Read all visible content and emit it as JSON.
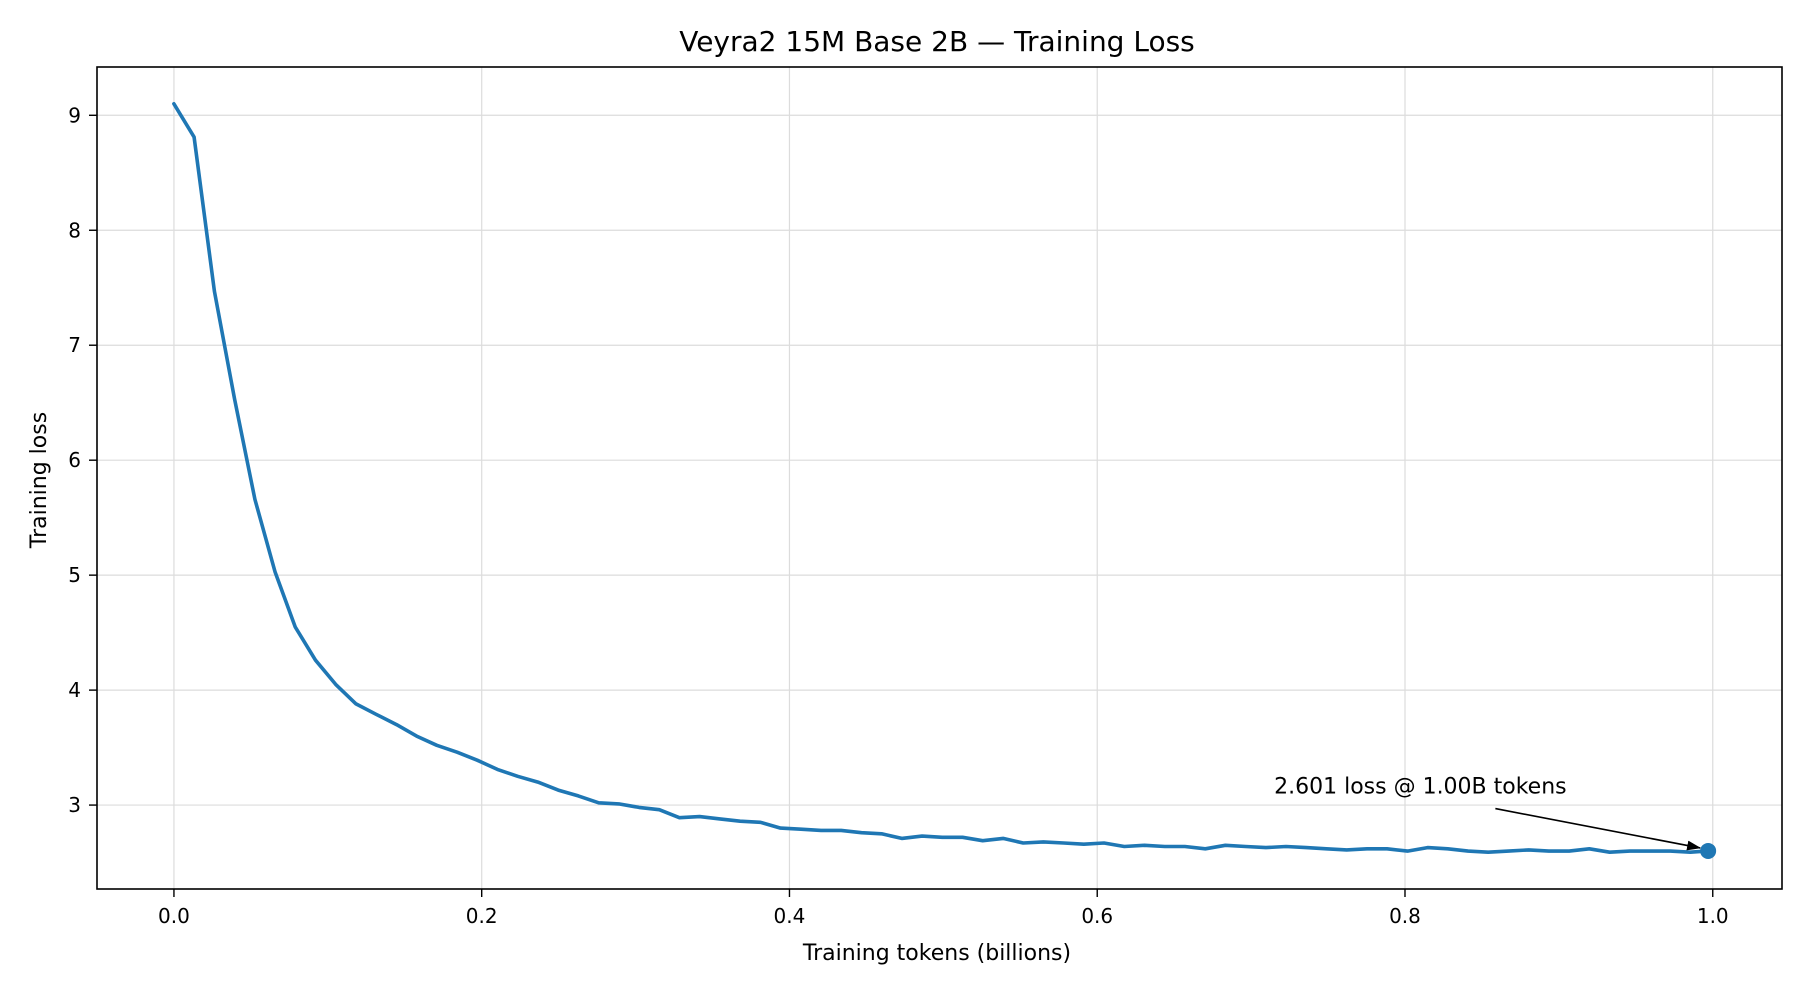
{
  "chart_data": {
    "type": "line",
    "title": "Veyra2 15M Base 2B  — Training Loss",
    "xlabel": "Training tokens (billions)",
    "ylabel": "Training loss",
    "xlim": [
      -0.05,
      1.045
    ],
    "ylim": [
      2.27,
      9.42
    ],
    "xticks": [
      0.0,
      0.2,
      0.4,
      0.6,
      0.8,
      1.0
    ],
    "xtick_labels": [
      "0.0",
      "0.2",
      "0.4",
      "0.6",
      "0.8",
      "1.0"
    ],
    "yticks": [
      3,
      4,
      5,
      6,
      7,
      8,
      9
    ],
    "ytick_labels": [
      "3",
      "4",
      "5",
      "6",
      "7",
      "8",
      "9"
    ],
    "grid": true,
    "line_color": "#1f77b4",
    "series": [
      {
        "x": [
          0.0,
          0.0131,
          0.0263,
          0.0394,
          0.0526,
          0.0657,
          0.0788,
          0.092,
          0.1051,
          0.1183,
          0.1314,
          0.1446,
          0.1577,
          0.1708,
          0.184,
          0.1971,
          0.2102,
          0.2234,
          0.2365,
          0.2497,
          0.2628,
          0.276,
          0.2891,
          0.3022,
          0.3154,
          0.3285,
          0.3416,
          0.3548,
          0.3679,
          0.3811,
          0.3942,
          0.4074,
          0.4205,
          0.4336,
          0.4468,
          0.4599,
          0.473,
          0.4862,
          0.4993,
          0.5125,
          0.5256,
          0.5388,
          0.5519,
          0.565,
          0.5782,
          0.5913,
          0.6044,
          0.6176,
          0.6307,
          0.6439,
          0.657,
          0.6702,
          0.6833,
          0.6964,
          0.7096,
          0.7227,
          0.7358,
          0.749,
          0.7621,
          0.7753,
          0.7884,
          0.8016,
          0.8147,
          0.8278,
          0.841,
          0.8541,
          0.8672,
          0.8804,
          0.8935,
          0.9067,
          0.9198,
          0.933,
          0.9461,
          0.9592,
          0.9724,
          0.9855,
          0.997
        ],
        "y": [
          9.1,
          8.81,
          7.47,
          6.53,
          5.66,
          5.03,
          4.55,
          4.26,
          4.05,
          3.88,
          3.79,
          3.7,
          3.6,
          3.52,
          3.46,
          3.39,
          3.31,
          3.25,
          3.2,
          3.13,
          3.08,
          3.02,
          3.01,
          2.98,
          2.96,
          2.89,
          2.9,
          2.88,
          2.86,
          2.85,
          2.8,
          2.79,
          2.78,
          2.78,
          2.76,
          2.75,
          2.71,
          2.73,
          2.72,
          2.72,
          2.69,
          2.71,
          2.67,
          2.68,
          2.67,
          2.66,
          2.67,
          2.64,
          2.65,
          2.64,
          2.64,
          2.62,
          2.65,
          2.64,
          2.63,
          2.64,
          2.63,
          2.62,
          2.61,
          2.62,
          2.62,
          2.6,
          2.63,
          2.62,
          2.6,
          2.59,
          2.6,
          2.61,
          2.6,
          2.6,
          2.62,
          2.59,
          2.6,
          2.6,
          2.6,
          2.59,
          2.601
        ]
      }
    ],
    "marker": {
      "x": 0.997,
      "y": 2.601
    },
    "annotation": {
      "text": "2.601 loss @ 1.00B tokens",
      "x": 0.81,
      "y": 3.1
    }
  }
}
